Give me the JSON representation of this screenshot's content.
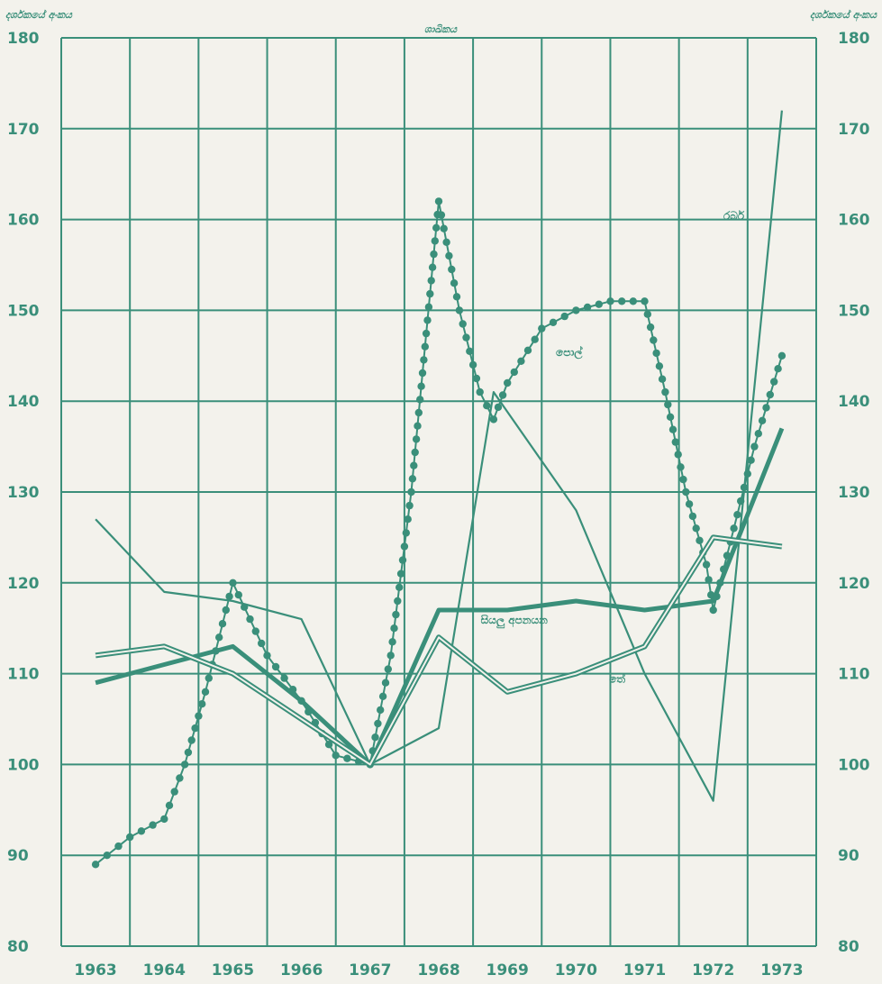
{
  "chart_data": {
    "type": "line",
    "title": "ශාඛිකය",
    "y_axis_title_left": "දර්ශකයේ අංකය",
    "y_axis_title_right": "දර්ශකයේ අංකය",
    "xlabel": "",
    "ylabel": "දර්ශකයේ අංකය",
    "ylim": [
      80,
      180
    ],
    "y_ticks": [
      80,
      90,
      100,
      110,
      120,
      130,
      140,
      150,
      160,
      170,
      180
    ],
    "x_ticks": [
      "1963",
      "1964",
      "1965",
      "1966",
      "1967",
      "1968",
      "1969",
      "1970",
      "1971",
      "1972",
      "1973"
    ],
    "grid": true,
    "legend": "inline labels",
    "series": [
      {
        "name": "පොල්",
        "style": "dotted-markers",
        "points": [
          [
            1963,
            89
          ],
          [
            1963.5,
            92
          ],
          [
            1964,
            94
          ],
          [
            1964.3,
            100
          ],
          [
            1964.6,
            108
          ],
          [
            1965,
            120
          ],
          [
            1965.5,
            112
          ],
          [
            1966,
            107
          ],
          [
            1966.5,
            101
          ],
          [
            1967,
            100
          ],
          [
            1967.3,
            112
          ],
          [
            1967.6,
            130
          ],
          [
            1968,
            162
          ],
          [
            1968.3,
            150
          ],
          [
            1968.6,
            141
          ],
          [
            1968.8,
            138
          ],
          [
            1969,
            142
          ],
          [
            1969.5,
            148
          ],
          [
            1970,
            150
          ],
          [
            1970.5,
            151
          ],
          [
            1971,
            151
          ],
          [
            1971.3,
            141
          ],
          [
            1971.6,
            130
          ],
          [
            1971.9,
            122
          ],
          [
            1972,
            117
          ],
          [
            1972.3,
            126
          ],
          [
            1972.6,
            135
          ],
          [
            1973,
            145
          ]
        ]
      },
      {
        "name": "රබර්",
        "style": "thin",
        "points": [
          [
            1963,
            127
          ],
          [
            1964,
            119
          ],
          [
            1965,
            118
          ],
          [
            1966,
            116
          ],
          [
            1967,
            100
          ],
          [
            1968,
            104
          ],
          [
            1968.8,
            141
          ],
          [
            1970,
            128
          ],
          [
            1971,
            110
          ],
          [
            1972,
            96
          ],
          [
            1973,
            172
          ]
        ]
      },
      {
        "name": "සියලු අපනයන",
        "style": "thick",
        "points": [
          [
            1963,
            109
          ],
          [
            1964,
            111
          ],
          [
            1965,
            113
          ],
          [
            1966,
            107
          ],
          [
            1967,
            100
          ],
          [
            1968,
            117
          ],
          [
            1969,
            117
          ],
          [
            1970,
            118
          ],
          [
            1971,
            117
          ],
          [
            1972,
            118
          ],
          [
            1973,
            137
          ]
        ]
      },
      {
        "name": "තේ",
        "style": "double",
        "points": [
          [
            1963,
            112
          ],
          [
            1964,
            113
          ],
          [
            1965,
            110
          ],
          [
            1966,
            105
          ],
          [
            1967,
            100
          ],
          [
            1968,
            114
          ],
          [
            1969,
            108
          ],
          [
            1970,
            110
          ],
          [
            1971,
            113
          ],
          [
            1972,
            125
          ],
          [
            1973,
            124
          ]
        ]
      }
    ],
    "colors": {
      "line": "#3a8f7a",
      "grid": "#3a8f7a",
      "background": "#f3f2ec"
    }
  }
}
